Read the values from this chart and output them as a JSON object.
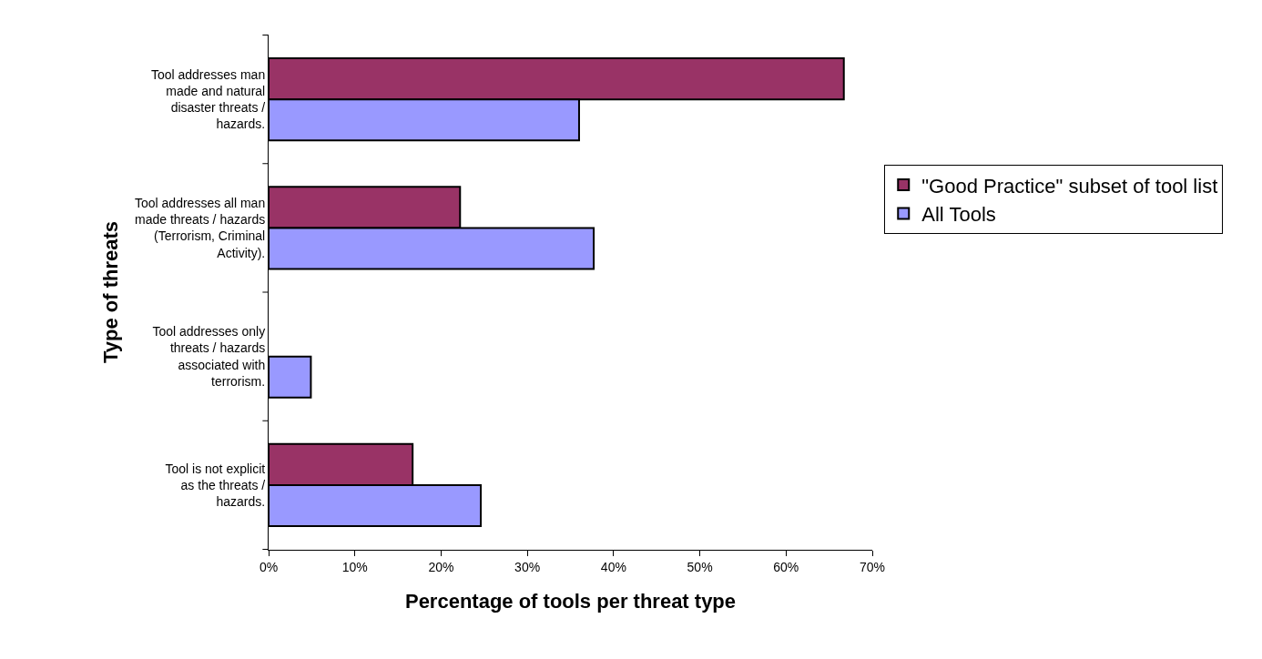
{
  "chart_data": {
    "type": "bar",
    "orientation": "horizontal",
    "xlabel": "Percentage of tools per threat type",
    "ylabel": "Type of threats",
    "categories": [
      "Tool addresses man made and natural disaster threats / hazards.",
      "Tool addresses all man made threats / hazards (Terrorism, Criminal Activity).",
      "Tool addresses only threats / hazards associated with terrorism.",
      "Tool is not explicit as the threats / hazards."
    ],
    "series": [
      {
        "name": "\"Good Practice\" subset of tool list",
        "color": "#993366",
        "values": [
          66.7,
          22.2,
          null,
          16.7
        ]
      },
      {
        "name": "All Tools",
        "color": "#9999ff",
        "values": [
          36.0,
          37.7,
          4.9,
          24.6
        ]
      }
    ],
    "xlim": [
      0,
      70
    ],
    "xticks": [
      {
        "value": 0,
        "label": "0%"
      },
      {
        "value": 10,
        "label": "10%"
      },
      {
        "value": 20,
        "label": "20%"
      },
      {
        "value": 30,
        "label": "30%"
      },
      {
        "value": 40,
        "label": "40%"
      },
      {
        "value": 50,
        "label": "50%"
      },
      {
        "value": 60,
        "label": "60%"
      },
      {
        "value": 70,
        "label": "70%"
      }
    ],
    "legend": "right"
  }
}
